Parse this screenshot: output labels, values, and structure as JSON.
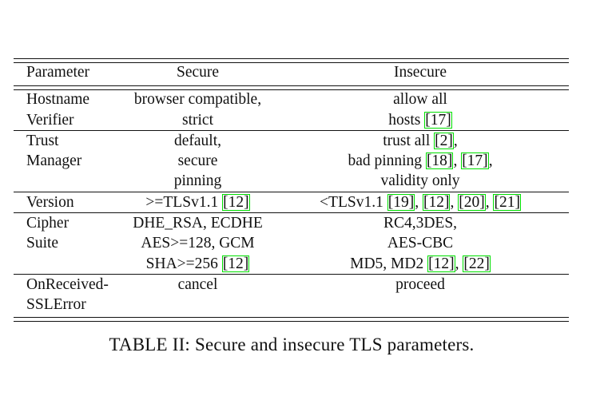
{
  "table": {
    "headers": {
      "parameter": "Parameter",
      "secure": "Secure",
      "insecure": "Insecure"
    },
    "rows": [
      {
        "parameter": [
          "Hostname",
          "Verifier"
        ],
        "secure": [
          [
            {
              "t": "browser compatible,"
            }
          ],
          [
            {
              "t": "strict"
            }
          ]
        ],
        "insecure": [
          [
            {
              "t": "allow all"
            }
          ],
          [
            {
              "t": "hosts "
            },
            {
              "t": "[17]",
              "ref": true
            }
          ]
        ]
      },
      {
        "parameter": [
          "Trust",
          "Manager"
        ],
        "secure": [
          [
            {
              "t": "default,"
            }
          ],
          [
            {
              "t": "secure"
            }
          ],
          [
            {
              "t": "pinning"
            }
          ]
        ],
        "insecure": [
          [
            {
              "t": "trust all "
            },
            {
              "t": "[2]",
              "ref": true
            },
            {
              "t": ","
            }
          ],
          [
            {
              "t": "bad pinning "
            },
            {
              "t": "[18]",
              "ref": true
            },
            {
              "t": ", "
            },
            {
              "t": "[17]",
              "ref": true
            },
            {
              "t": ","
            }
          ],
          [
            {
              "t": "validity only"
            }
          ]
        ]
      },
      {
        "parameter": [
          "Version"
        ],
        "secure": [
          [
            {
              "t": ">=TLSv1.1 "
            },
            {
              "t": "[12]",
              "ref": true
            }
          ]
        ],
        "insecure": [
          [
            {
              "t": "<TLSv1.1 "
            },
            {
              "t": "[19]",
              "ref": true
            },
            {
              "t": ", "
            },
            {
              "t": "[12]",
              "ref": true
            },
            {
              "t": ", "
            },
            {
              "t": "[20]",
              "ref": true
            },
            {
              "t": ", "
            },
            {
              "t": "[21]",
              "ref": true
            }
          ]
        ]
      },
      {
        "parameter": [
          "Cipher",
          "Suite"
        ],
        "secure": [
          [
            {
              "t": "DHE_RSA, ECDHE"
            }
          ],
          [
            {
              "t": "AES>=128, GCM"
            }
          ],
          [
            {
              "t": "SHA>=256 "
            },
            {
              "t": "[12]",
              "ref": true
            }
          ]
        ],
        "insecure": [
          [
            {
              "t": "RC4,3DES,"
            }
          ],
          [
            {
              "t": "AES-CBC"
            }
          ],
          [
            {
              "t": "MD5, MD2 "
            },
            {
              "t": "[12]",
              "ref": true
            },
            {
              "t": ", "
            },
            {
              "t": "[22]",
              "ref": true
            }
          ]
        ]
      },
      {
        "parameter": [
          "OnReceived-",
          "SSLError"
        ],
        "secure": [
          [
            {
              "t": "cancel"
            }
          ]
        ],
        "insecure": [
          [
            {
              "t": "proceed"
            }
          ]
        ]
      }
    ]
  },
  "caption": "TABLE II: Secure and insecure TLS parameters.",
  "colors": {
    "text": "#111111",
    "citation_box": "#00e000",
    "background": "#ffffff"
  }
}
